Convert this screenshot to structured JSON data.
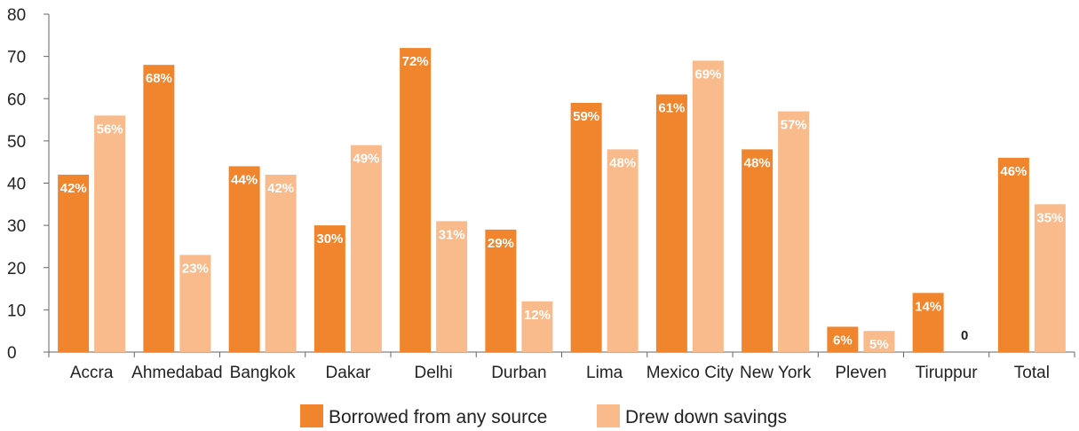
{
  "chart_data": {
    "type": "bar",
    "categories": [
      "Accra",
      "Ahmedabad",
      "Bangkok",
      "Dakar",
      "Delhi",
      "Durban",
      "Lima",
      "Mexico City",
      "New York",
      "Pleven",
      "Tiruppur",
      "Total"
    ],
    "series": [
      {
        "name": "Borrowed from any source",
        "color": "#f0852d",
        "values": [
          42,
          68,
          44,
          30,
          72,
          29,
          59,
          61,
          48,
          6,
          14,
          46
        ],
        "labels": [
          "42%",
          "68%",
          "44%",
          "30%",
          "72%",
          "29%",
          "59%",
          "61%",
          "48%",
          "6%",
          "14%",
          "46%"
        ]
      },
      {
        "name": "Drew down savings",
        "color": "#f9bb8c",
        "values": [
          56,
          23,
          42,
          49,
          31,
          12,
          48,
          69,
          57,
          5,
          0,
          35
        ],
        "labels": [
          "56%",
          "23%",
          "42%",
          "49%",
          "31%",
          "12%",
          "48%",
          "69%",
          "57%",
          "5%",
          "0",
          "35%"
        ]
      }
    ],
    "yticks": [
      "0",
      "10",
      "20",
      "30",
      "40",
      "50",
      "60",
      "70",
      "80"
    ],
    "ylim": [
      0,
      80
    ],
    "legend_position": "bottom-center",
    "grid": false
  }
}
